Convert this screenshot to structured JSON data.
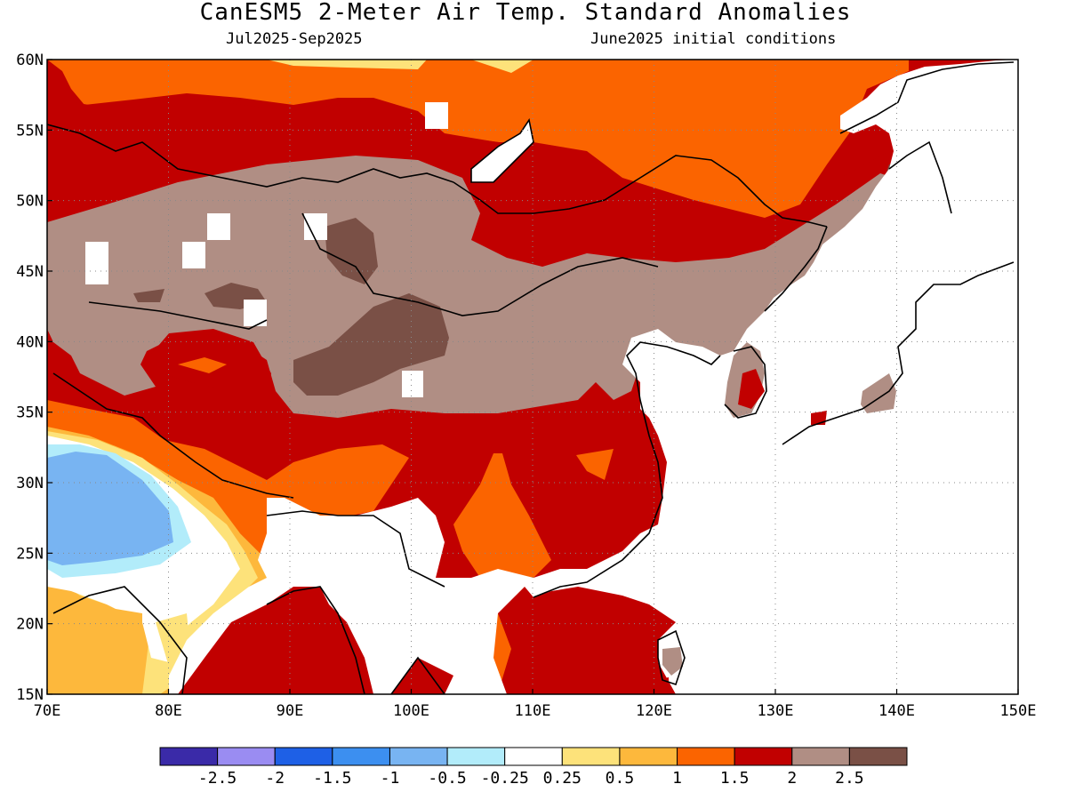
{
  "header": {
    "title": "CanESM5 2-Meter Air Temp. Standard Anomalies",
    "period": "Jul2025-Sep2025",
    "init": "June2025 initial conditions"
  },
  "map": {
    "lon_range": [
      70,
      150
    ],
    "lat_range": [
      15,
      60
    ],
    "lon_ticks": [
      70,
      80,
      90,
      100,
      110,
      120,
      130,
      140,
      150
    ],
    "lat_ticks": [
      15,
      20,
      25,
      30,
      35,
      40,
      45,
      50,
      55,
      60
    ],
    "lon_labels": [
      "70E",
      "80E",
      "90E",
      "100E",
      "110E",
      "120E",
      "130E",
      "140E",
      "150E"
    ],
    "lat_labels": [
      "15N",
      "20N",
      "25N",
      "30N",
      "35N",
      "40N",
      "45N",
      "50N",
      "55N",
      "60N"
    ],
    "gridlines": "dotted",
    "ocean_masked": true
  },
  "colorbar": {
    "colors": [
      "#3a2aa8",
      "#9a8cf2",
      "#1e60e6",
      "#3c8ff0",
      "#78b4f2",
      "#b2ecfa",
      "#ffffff",
      "#fde27a",
      "#fdb83c",
      "#fb6400",
      "#c10000",
      "#b08e84",
      "#7a5046"
    ],
    "labels": [
      "-2.5",
      "-2",
      "-1.5",
      "-1",
      "-0.5",
      "-0.25",
      "0.25",
      "0.5",
      "1",
      "1.5",
      "2",
      "2.5"
    ]
  }
}
